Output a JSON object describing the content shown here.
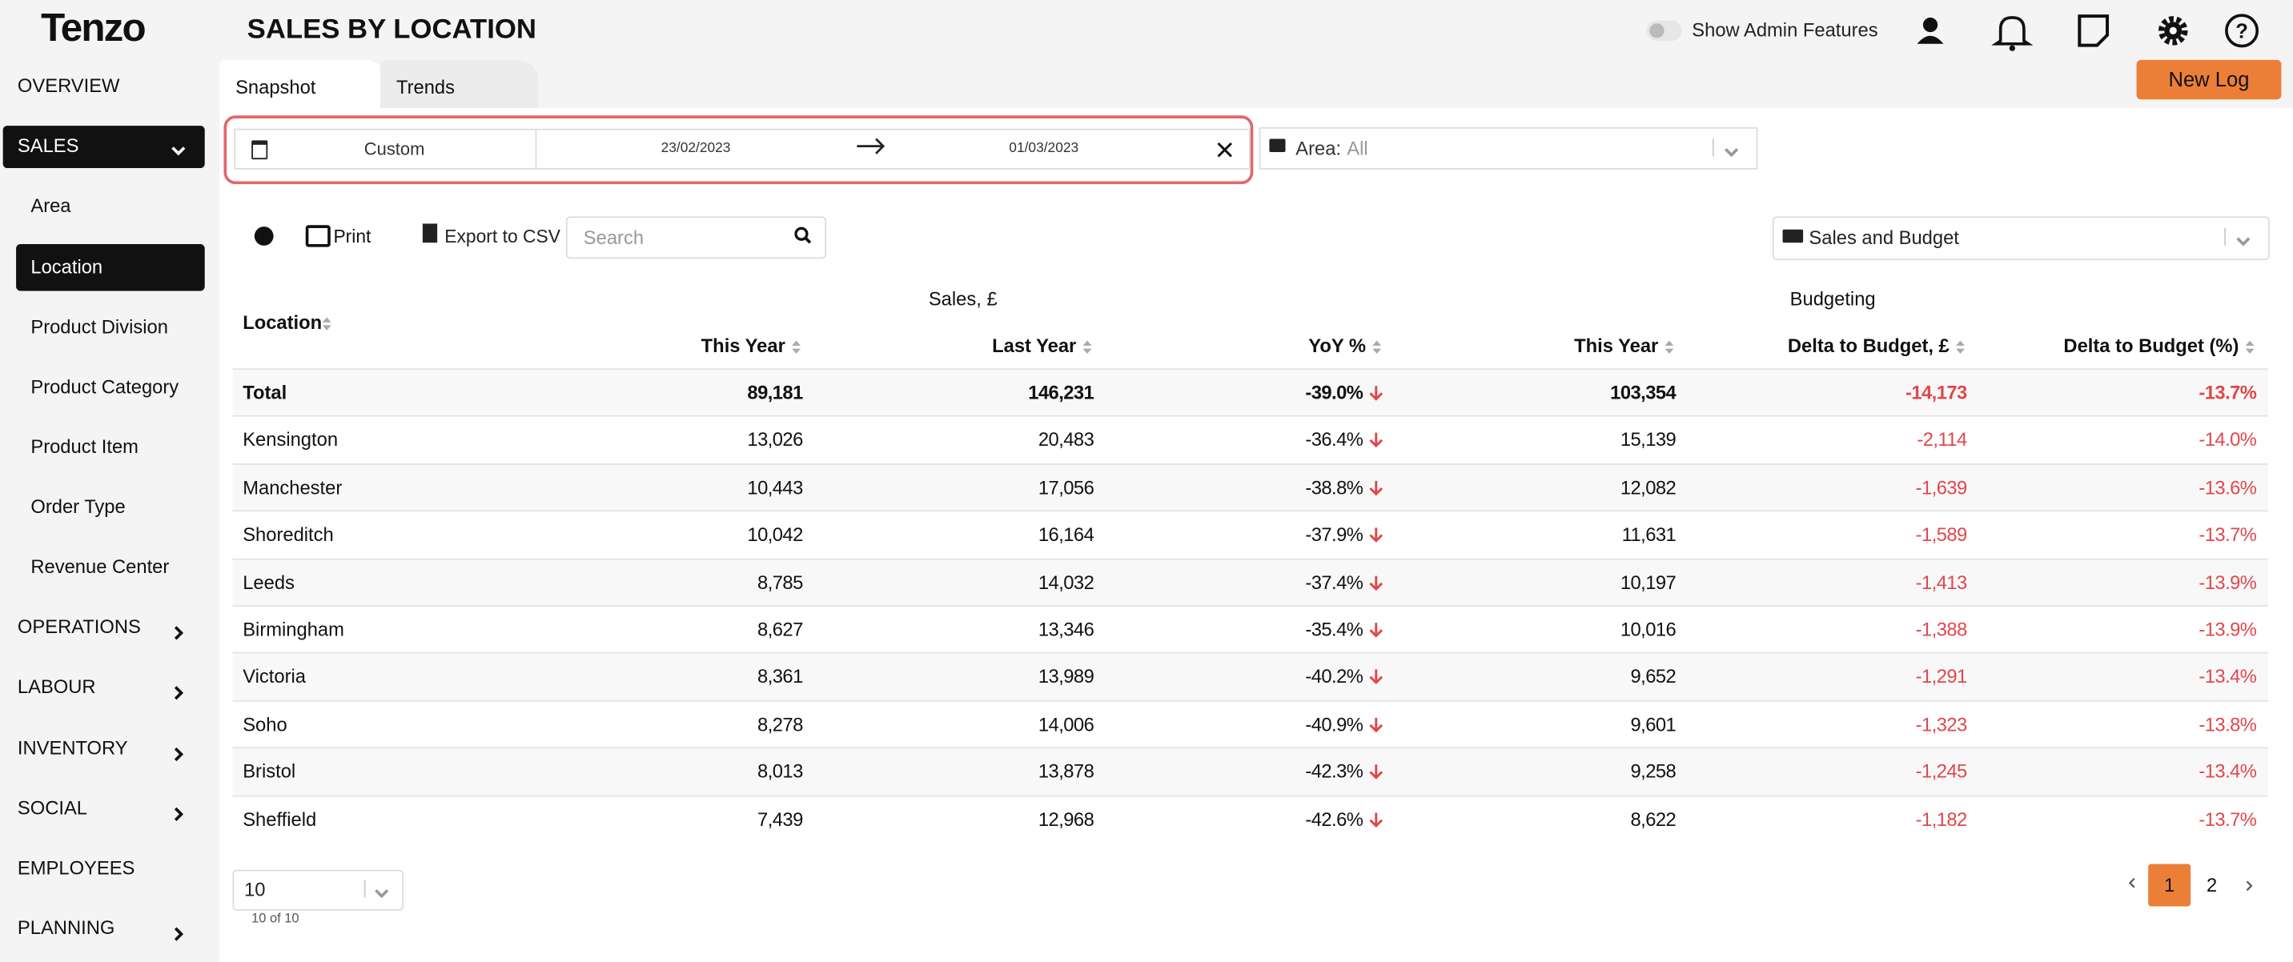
{
  "header": {
    "logo": "Tenzo",
    "title": "SALES BY LOCATION",
    "admin_toggle": "Show Admin Features",
    "new_log": "New Log"
  },
  "sidebar": [
    {
      "label": "OVERVIEW"
    },
    {
      "label": "SALES",
      "active": true,
      "items": [
        {
          "label": "Area"
        },
        {
          "label": "Location",
          "active": true
        },
        {
          "label": "Product Division"
        },
        {
          "label": "Product Category"
        },
        {
          "label": "Product Item"
        },
        {
          "label": "Order Type"
        },
        {
          "label": "Revenue Center"
        }
      ]
    },
    {
      "label": "OPERATIONS",
      "expandable": true
    },
    {
      "label": "LABOUR",
      "expandable": true
    },
    {
      "label": "INVENTORY",
      "expandable": true
    },
    {
      "label": "SOCIAL",
      "expandable": true
    },
    {
      "label": "EMPLOYEES"
    },
    {
      "label": "PLANNING",
      "expandable": true
    }
  ],
  "tabs": [
    "Snapshot",
    "Trends"
  ],
  "filters": {
    "preset": "Custom",
    "start": "23/02/2023",
    "end": "01/03/2023",
    "area_label": "Area:",
    "area_value": "All"
  },
  "toolbar": {
    "print": "Print",
    "export": "Export to CSV",
    "search": "Search",
    "view": "Sales and Budget"
  },
  "table": {
    "groups": [
      "Sales, £",
      "Budgeting"
    ],
    "columns": [
      "Location",
      "This Year",
      "Last Year",
      "YoY %",
      "This Year",
      "Delta to Budget, £",
      "Delta to Budget (%)"
    ],
    "rows": [
      [
        "Total",
        "89,181",
        "146,231",
        "-39.0%",
        "103,354",
        "-14,173",
        "-13.7%"
      ],
      [
        "Kensington",
        "13,026",
        "20,483",
        "-36.4%",
        "15,139",
        "-2,114",
        "-14.0%"
      ],
      [
        "Manchester",
        "10,443",
        "17,056",
        "-38.8%",
        "12,082",
        "-1,639",
        "-13.6%"
      ],
      [
        "Shoreditch",
        "10,042",
        "16,164",
        "-37.9%",
        "11,631",
        "-1,589",
        "-13.7%"
      ],
      [
        "Leeds",
        "8,785",
        "14,032",
        "-37.4%",
        "10,197",
        "-1,413",
        "-13.9%"
      ],
      [
        "Birmingham",
        "8,627",
        "13,346",
        "-35.4%",
        "10,016",
        "-1,388",
        "-13.9%"
      ],
      [
        "Victoria",
        "8,361",
        "13,989",
        "-40.2%",
        "9,652",
        "-1,291",
        "-13.4%"
      ],
      [
        "Soho",
        "8,278",
        "14,006",
        "-40.9%",
        "9,601",
        "-1,323",
        "-13.8%"
      ],
      [
        "Bristol",
        "8,013",
        "13,878",
        "-42.3%",
        "9,258",
        "-1,245",
        "-13.4%"
      ],
      [
        "Sheffield",
        "7,439",
        "12,968",
        "-42.6%",
        "8,622",
        "-1,182",
        "-13.7%"
      ]
    ]
  },
  "pagination": {
    "page_size": "10",
    "count": "10 of 10",
    "pages": [
      "1",
      "2"
    ],
    "current": "1"
  }
}
